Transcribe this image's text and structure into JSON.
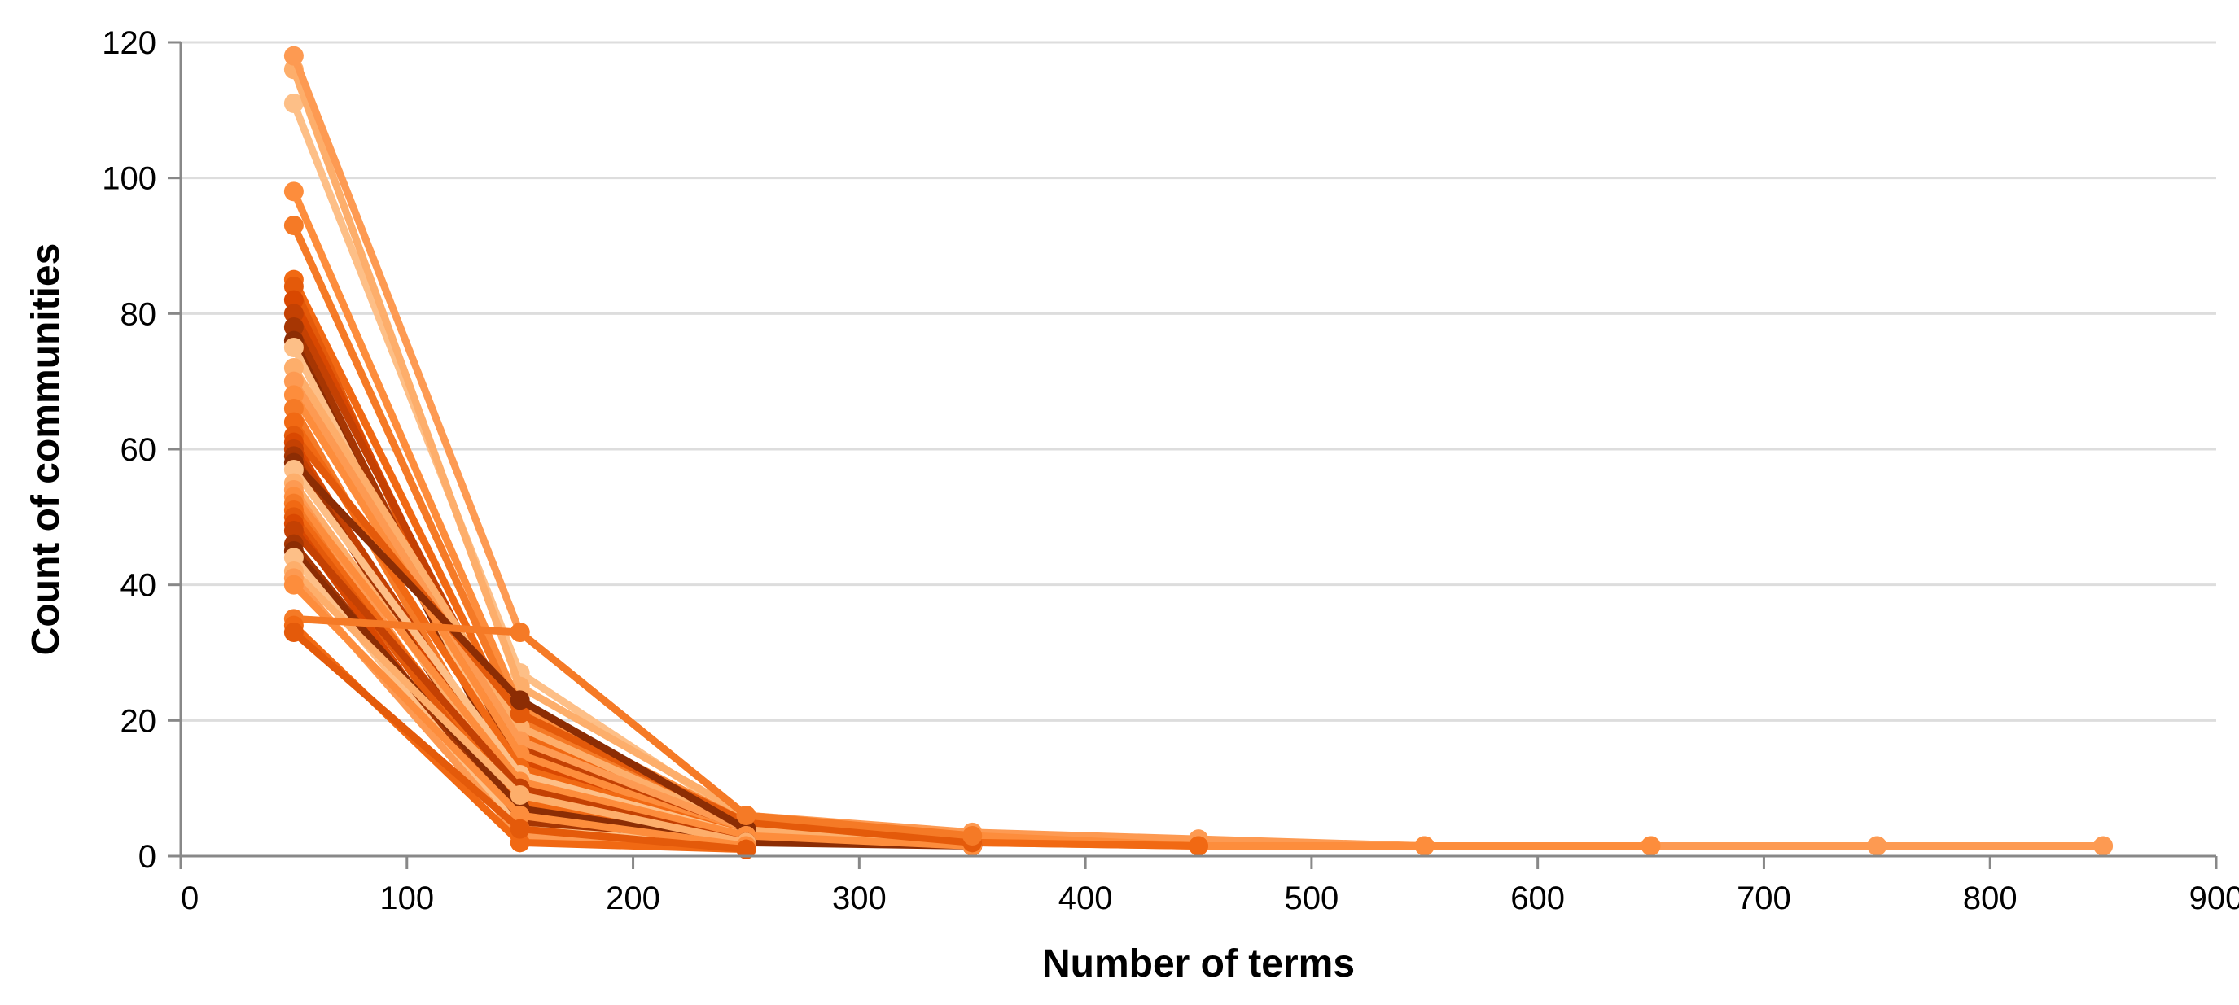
{
  "chart_data": {
    "type": "line",
    "xlabel": "Number of terms",
    "ylabel": "Count of communities",
    "xlim": [
      0,
      900
    ],
    "ylim": [
      0,
      120
    ],
    "x_ticks": [
      0,
      100,
      200,
      300,
      400,
      500,
      600,
      700,
      800,
      900
    ],
    "y_ticks": [
      0,
      20,
      40,
      60,
      80,
      100,
      120
    ],
    "grid": "horizontal",
    "legend": "none",
    "colors": [
      "#fdbf87",
      "#fdae6b",
      "#fd9a52",
      "#fd8d3c",
      "#f57a26",
      "#f16913",
      "#e45a0a",
      "#d94801",
      "#c44103",
      "#a63603",
      "#8c2d04"
    ],
    "series": [
      {
        "values": [
          [
            50,
            111
          ],
          [
            150,
            27
          ],
          [
            250,
            5
          ],
          [
            350,
            3
          ],
          [
            450,
            2
          ],
          [
            550,
            1.5
          ],
          [
            650,
            1.5
          ],
          [
            750,
            1.5
          ]
        ]
      },
      {
        "values": [
          [
            50,
            116
          ],
          [
            150,
            25
          ],
          [
            250,
            6
          ],
          [
            350,
            3
          ],
          [
            450,
            2
          ],
          [
            550,
            1.5
          ]
        ]
      },
      {
        "values": [
          [
            50,
            118
          ],
          [
            150,
            33
          ],
          [
            250,
            6
          ],
          [
            350,
            3.5
          ],
          [
            450,
            2.5
          ],
          [
            550,
            1.5
          ],
          [
            650,
            1.5
          ],
          [
            750,
            1.5
          ],
          [
            850,
            1.5
          ]
        ]
      },
      {
        "values": [
          [
            50,
            98
          ],
          [
            150,
            22
          ],
          [
            250,
            5
          ],
          [
            350,
            3
          ],
          [
            450,
            1.5
          ],
          [
            550,
            1.5
          ],
          [
            650,
            1.5
          ]
        ]
      },
      {
        "values": [
          [
            50,
            93
          ],
          [
            150,
            20
          ],
          [
            250,
            4
          ],
          [
            350,
            2
          ],
          [
            450,
            1.5
          ]
        ]
      },
      {
        "values": [
          [
            50,
            85
          ],
          [
            150,
            18
          ],
          [
            250,
            4
          ],
          [
            350,
            2
          ],
          [
            450,
            1.5
          ]
        ]
      },
      {
        "values": [
          [
            50,
            84
          ],
          [
            150,
            10
          ],
          [
            250,
            3
          ],
          [
            350,
            1.5
          ]
        ]
      },
      {
        "values": [
          [
            50,
            82
          ],
          [
            150,
            14
          ],
          [
            250,
            3
          ],
          [
            350,
            2
          ]
        ]
      },
      {
        "values": [
          [
            50,
            80
          ],
          [
            150,
            16
          ],
          [
            250,
            4
          ],
          [
            350,
            2
          ]
        ]
      },
      {
        "values": [
          [
            50,
            78
          ],
          [
            150,
            12
          ],
          [
            250,
            3
          ],
          [
            350,
            1.5
          ]
        ]
      },
      {
        "values": [
          [
            50,
            76
          ],
          [
            150,
            9
          ],
          [
            250,
            2
          ],
          [
            350,
            1.5
          ]
        ]
      },
      {
        "values": [
          [
            50,
            75
          ],
          [
            150,
            11
          ],
          [
            250,
            3
          ]
        ]
      },
      {
        "values": [
          [
            50,
            72
          ],
          [
            150,
            19
          ],
          [
            250,
            4
          ],
          [
            350,
            2
          ]
        ]
      },
      {
        "values": [
          [
            50,
            70
          ],
          [
            150,
            17
          ],
          [
            250,
            4
          ]
        ]
      },
      {
        "values": [
          [
            50,
            68
          ],
          [
            150,
            15
          ],
          [
            250,
            3
          ],
          [
            350,
            1.5
          ]
        ]
      },
      {
        "values": [
          [
            50,
            66
          ],
          [
            150,
            8
          ],
          [
            250,
            2
          ]
        ]
      },
      {
        "values": [
          [
            50,
            64
          ],
          [
            150,
            13
          ],
          [
            250,
            3
          ]
        ]
      },
      {
        "values": [
          [
            50,
            62
          ],
          [
            150,
            21
          ],
          [
            250,
            5
          ],
          [
            350,
            2
          ]
        ]
      },
      {
        "values": [
          [
            50,
            61
          ],
          [
            150,
            7
          ],
          [
            250,
            2
          ]
        ]
      },
      {
        "values": [
          [
            50,
            60
          ],
          [
            150,
            10
          ],
          [
            250,
            2
          ]
        ]
      },
      {
        "values": [
          [
            50,
            59
          ],
          [
            150,
            6
          ],
          [
            250,
            2
          ]
        ]
      },
      {
        "values": [
          [
            50,
            58
          ],
          [
            150,
            23
          ],
          [
            250,
            4
          ]
        ]
      },
      {
        "values": [
          [
            50,
            57
          ],
          [
            150,
            12
          ],
          [
            250,
            3
          ]
        ]
      },
      {
        "values": [
          [
            50,
            55
          ],
          [
            150,
            9
          ],
          [
            250,
            2
          ]
        ]
      },
      {
        "values": [
          [
            50,
            54
          ],
          [
            150,
            5
          ],
          [
            250,
            2
          ]
        ]
      },
      {
        "values": [
          [
            50,
            53
          ],
          [
            150,
            11
          ],
          [
            250,
            3
          ]
        ]
      },
      {
        "values": [
          [
            50,
            52
          ],
          [
            150,
            4
          ],
          [
            250,
            1.5
          ]
        ]
      },
      {
        "values": [
          [
            50,
            51
          ],
          [
            150,
            8
          ],
          [
            250,
            2
          ]
        ]
      },
      {
        "values": [
          [
            50,
            50
          ],
          [
            150,
            6
          ],
          [
            250,
            2
          ]
        ]
      },
      {
        "values": [
          [
            50,
            49
          ],
          [
            150,
            3
          ],
          [
            250,
            1.5
          ]
        ]
      },
      {
        "values": [
          [
            50,
            48
          ],
          [
            150,
            10
          ],
          [
            250,
            2
          ]
        ]
      },
      {
        "values": [
          [
            50,
            46
          ],
          [
            150,
            5
          ],
          [
            250,
            1.5
          ]
        ]
      },
      {
        "values": [
          [
            50,
            45
          ],
          [
            150,
            7
          ],
          [
            250,
            2
          ]
        ]
      },
      {
        "values": [
          [
            50,
            44
          ],
          [
            150,
            4
          ],
          [
            250,
            1.5
          ]
        ]
      },
      {
        "values": [
          [
            50,
            42
          ],
          [
            150,
            9
          ],
          [
            250,
            2
          ]
        ]
      },
      {
        "values": [
          [
            50,
            41
          ],
          [
            150,
            3
          ],
          [
            250,
            1.5
          ]
        ]
      },
      {
        "values": [
          [
            50,
            40
          ],
          [
            150,
            6
          ],
          [
            250,
            1.5
          ]
        ]
      },
      {
        "values": [
          [
            50,
            35
          ],
          [
            150,
            33
          ],
          [
            250,
            6
          ],
          [
            350,
            3
          ]
        ]
      },
      {
        "values": [
          [
            50,
            34
          ],
          [
            150,
            2
          ],
          [
            250,
            1
          ]
        ]
      },
      {
        "values": [
          [
            50,
            33
          ],
          [
            150,
            4
          ],
          [
            250,
            1
          ]
        ]
      }
    ]
  }
}
